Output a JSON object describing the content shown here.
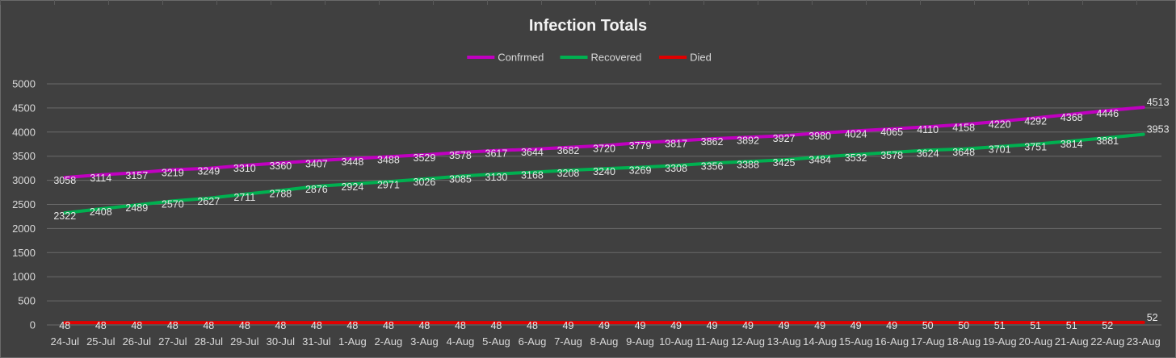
{
  "chart_data": {
    "type": "line",
    "title": "Infection Totals",
    "xlabel": "",
    "ylabel": "",
    "ylim": [
      0,
      5000
    ],
    "yticks": [
      0,
      500,
      1000,
      1500,
      2000,
      2500,
      3000,
      3500,
      4000,
      4500,
      5000
    ],
    "grid": "horizontal",
    "legend": "top-center",
    "categories": [
      "24-Jul",
      "25-Jul",
      "26-Jul",
      "27-Jul",
      "28-Jul",
      "29-Jul",
      "30-Jul",
      "31-Jul",
      "1-Aug",
      "2-Aug",
      "3-Aug",
      "4-Aug",
      "5-Aug",
      "6-Aug",
      "7-Aug",
      "8-Aug",
      "9-Aug",
      "10-Aug",
      "11-Aug",
      "12-Aug",
      "13-Aug",
      "14-Aug",
      "15-Aug",
      "16-Aug",
      "17-Aug",
      "18-Aug",
      "19-Aug",
      "20-Aug",
      "21-Aug",
      "22-Aug",
      "23-Aug"
    ],
    "series": [
      {
        "name": "Confrmed",
        "color": "#c000c0",
        "values": [
          3058,
          3114,
          3157,
          3219,
          3249,
          3310,
          3360,
          3407,
          3448,
          3488,
          3529,
          3578,
          3617,
          3644,
          3682,
          3720,
          3779,
          3817,
          3862,
          3892,
          3927,
          3980,
          4024,
          4065,
          4110,
          4158,
          4220,
          4292,
          4368,
          4446,
          4513
        ]
      },
      {
        "name": "Recovered",
        "color": "#00b050",
        "values": [
          2322,
          2408,
          2489,
          2570,
          2627,
          2711,
          2788,
          2876,
          2924,
          2971,
          3026,
          3085,
          3130,
          3168,
          3208,
          3240,
          3269,
          3308,
          3356,
          3388,
          3425,
          3484,
          3532,
          3578,
          3624,
          3648,
          3701,
          3751,
          3814,
          3881,
          3953
        ]
      },
      {
        "name": "Died",
        "color": "#e00000",
        "values": [
          48,
          48,
          48,
          48,
          48,
          48,
          48,
          48,
          48,
          48,
          48,
          48,
          48,
          48,
          49,
          49,
          49,
          49,
          49,
          49,
          49,
          49,
          49,
          49,
          50,
          50,
          51,
          51,
          51,
          52,
          52
        ]
      }
    ]
  }
}
